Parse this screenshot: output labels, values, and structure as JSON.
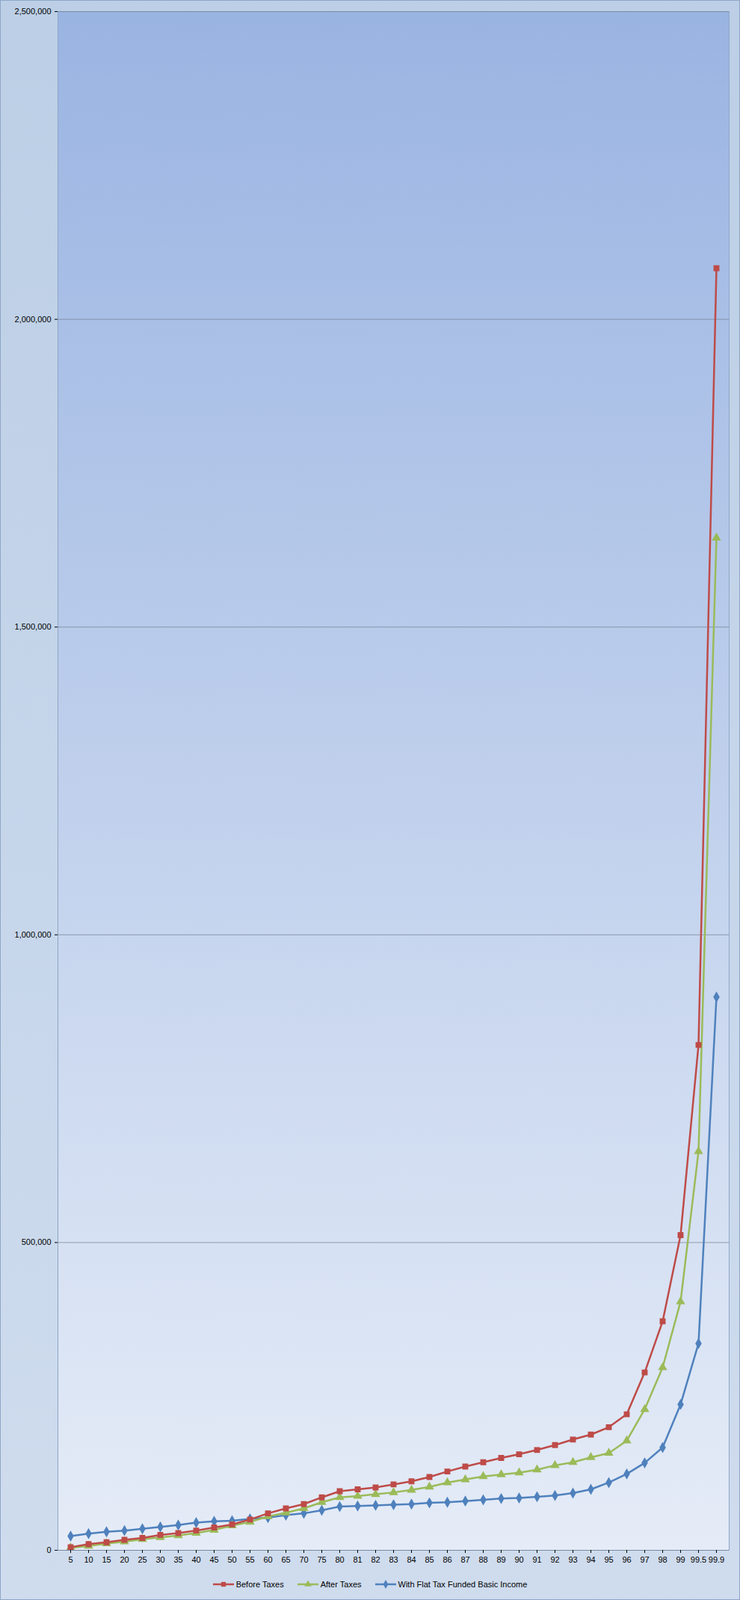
{
  "chart_data": {
    "type": "line",
    "categories": [
      "5",
      "10",
      "15",
      "20",
      "25",
      "30",
      "35",
      "40",
      "45",
      "50",
      "55",
      "60",
      "65",
      "70",
      "75",
      "80",
      "81",
      "82",
      "83",
      "84",
      "85",
      "86",
      "87",
      "88",
      "89",
      "90",
      "91",
      "92",
      "93",
      "94",
      "95",
      "96",
      "97",
      "98",
      "99",
      "99.5",
      "99.9"
    ],
    "series": [
      {
        "name": "Before Taxes",
        "color": "#be4b48",
        "marker": "square",
        "values": [
          5000,
          10000,
          13000,
          17000,
          20000,
          25000,
          28000,
          32000,
          37000,
          42000,
          50000,
          60000,
          68000,
          75000,
          86000,
          96000,
          99000,
          102000,
          107000,
          112000,
          119000,
          128000,
          136000,
          143000,
          150000,
          156000,
          163000,
          171000,
          180000,
          188000,
          200000,
          221000,
          289000,
          372000,
          512000,
          821000,
          2083000
        ]
      },
      {
        "name": "After Taxes",
        "color": "#9bbb59",
        "marker": "triangle",
        "values": [
          4000,
          7000,
          11000,
          14000,
          18000,
          21000,
          24000,
          28000,
          33000,
          40000,
          46000,
          55000,
          61000,
          68000,
          78000,
          86000,
          88000,
          91000,
          94000,
          98000,
          103000,
          110000,
          115000,
          120000,
          123000,
          126000,
          131000,
          138000,
          143000,
          151000,
          158000,
          178000,
          229000,
          297000,
          404000,
          648000,
          1645000
        ]
      },
      {
        "name": "With Flat Tax Funded Basic Income",
        "color": "#4f81bd",
        "marker": "diamond",
        "values": [
          23000,
          27000,
          30000,
          32000,
          35000,
          38000,
          41000,
          45000,
          47000,
          48000,
          51000,
          53000,
          57000,
          60000,
          65000,
          71000,
          72000,
          73000,
          74000,
          75000,
          77000,
          78000,
          80000,
          82000,
          84000,
          85000,
          87000,
          89000,
          93000,
          99000,
          110000,
          124000,
          142000,
          167000,
          237000,
          336000,
          899000
        ]
      }
    ],
    "ylim": [
      0,
      2500000
    ],
    "yticks": [
      0,
      {
        "value": 500000,
        "label": "500,000"
      },
      {
        "value": 1000000,
        "label": "1,000,000"
      },
      {
        "value": 1500000,
        "label": "1,500,000"
      },
      {
        "value": 2000000,
        "label": "2,000,000"
      },
      {
        "value": 2500000,
        "label": "2,500,000"
      }
    ],
    "grid": true,
    "legend": "bottom"
  }
}
